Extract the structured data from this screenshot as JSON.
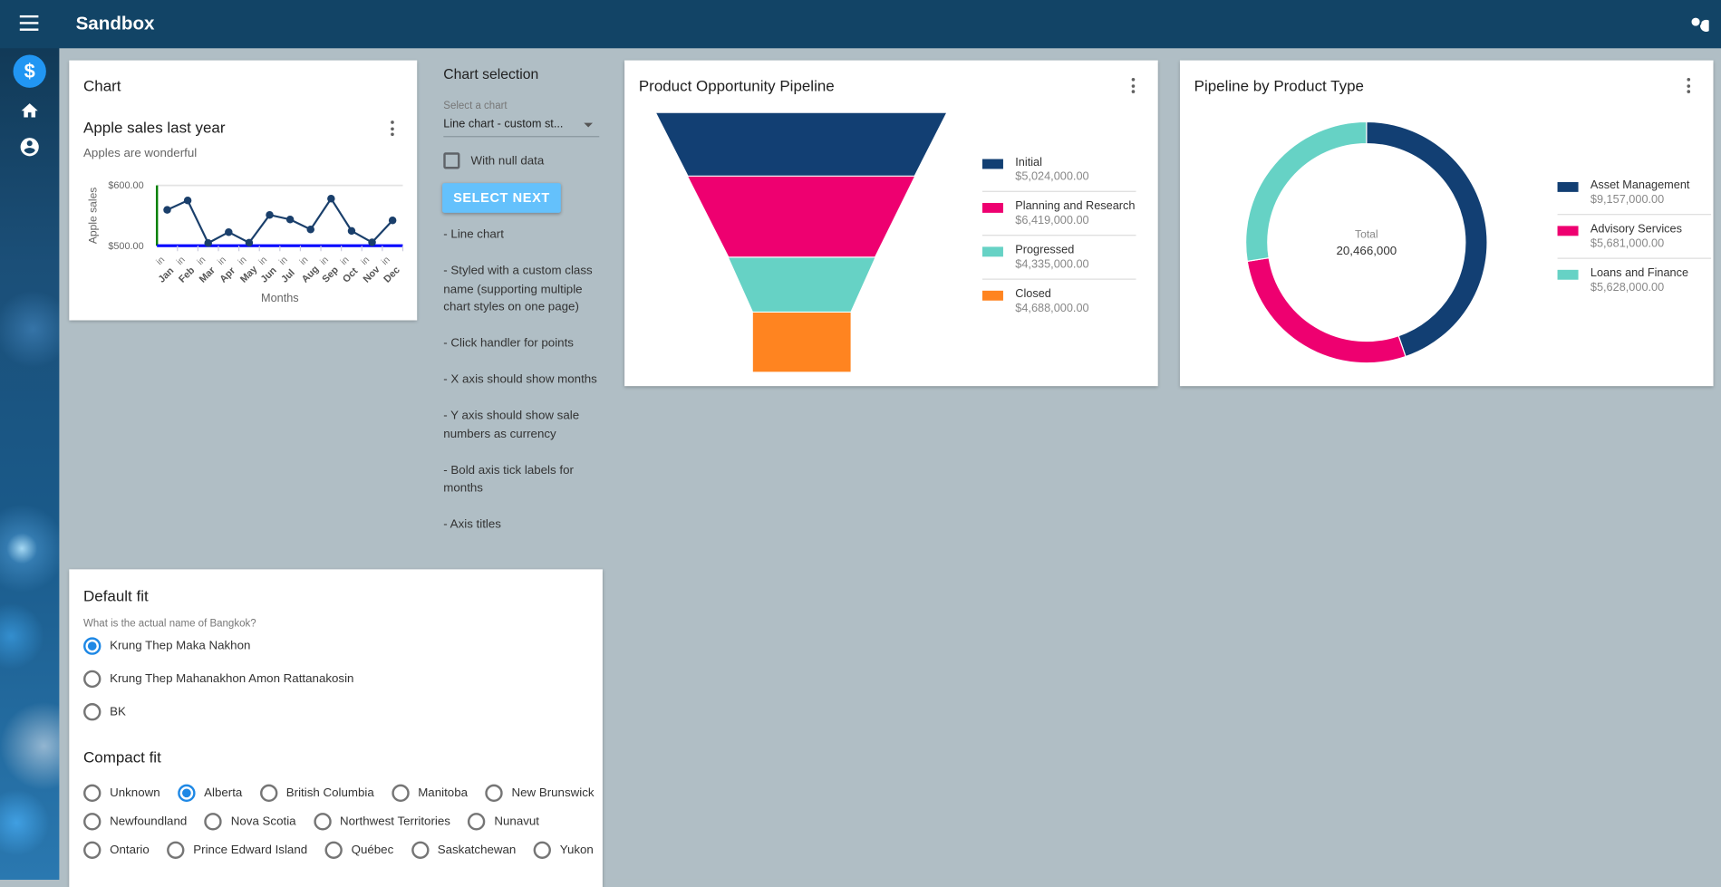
{
  "header": {
    "title": "Sandbox",
    "menu_icon": "menu-icon",
    "search_icon": "search-icon"
  },
  "sidebar": {
    "items": [
      {
        "icon": "dollar-icon",
        "active": true
      },
      {
        "icon": "home-icon"
      },
      {
        "icon": "account-circle-icon"
      }
    ]
  },
  "chart_card": {
    "title": "Chart",
    "chart_title": "Apple sales last year",
    "subtitle": "Apples are wonderful"
  },
  "chart_data": {
    "type": "line",
    "categories": [
      "Jan",
      "Feb",
      "Mar",
      "Apr",
      "May",
      "Jun",
      "Jul",
      "Aug",
      "Sep",
      "Oct",
      "Nov",
      "Dec"
    ],
    "tick_prefix": "in",
    "values": [
      559.5,
      575,
      504.5,
      522.5,
      505,
      551,
      543.5,
      527,
      578,
      524.5,
      505.5,
      542
    ],
    "ylim": [
      500,
      600
    ],
    "yticks": [
      "$500.00",
      "$600.00"
    ],
    "xlabel": "Months",
    "ylabel": "Apple sales",
    "colors": {
      "line": "#1a3f6b",
      "xaxis": "#0000ff",
      "yaxis": "#008000"
    }
  },
  "selection": {
    "title": "Chart selection",
    "select_label": "Select a chart",
    "select_value": "Line chart - custom st...",
    "checkbox_label": "With null data",
    "checkbox_checked": false,
    "button_label": "SELECT NEXT",
    "notes": [
      "- Line chart",
      "- Styled with a custom class name (supporting multiple chart styles on one page)",
      "- Click handler for points",
      "- X axis should show months",
      "- Y axis should show sale numbers as currency",
      "- Bold axis tick labels for months",
      "- Axis titles"
    ]
  },
  "funnel": {
    "title": "Product Opportunity Pipeline",
    "stages": [
      {
        "name": "Initial",
        "value": "$5,024,000.00",
        "color": "#123f73"
      },
      {
        "name": "Planning and Research",
        "value": "$6,419,000.00",
        "color": "#ee0070"
      },
      {
        "name": "Progressed",
        "value": "$4,335,000.00",
        "color": "#66d2c5"
      },
      {
        "name": "Closed",
        "value": "$4,688,000.00",
        "color": "#ff8420"
      }
    ]
  },
  "donut": {
    "title": "Pipeline by Product Type",
    "total_label": "Total",
    "total_value": "20,466,000",
    "segments": [
      {
        "name": "Asset Management",
        "value": 9157000,
        "value_label": "$9,157,000.00",
        "color": "#123f73"
      },
      {
        "name": "Advisory Services",
        "value": 5681000,
        "value_label": "$5,681,000.00",
        "color": "#ee0070"
      },
      {
        "name": "Loans and Finance",
        "value": 5628000,
        "value_label": "$5,628,000.00",
        "color": "#66d2c5"
      }
    ]
  },
  "radios": {
    "default_title": "Default fit",
    "question": "What is the actual name of Bangkok?",
    "default_options": [
      "Krung Thep Maka Nakhon",
      "Krung Thep Mahanakhon Amon Rattanakosin",
      "BK"
    ],
    "default_selected": 0,
    "compact_title": "Compact fit",
    "compact_rows": [
      [
        "Unknown",
        "Alberta",
        "British Columbia",
        "Manitoba",
        "New Brunswick"
      ],
      [
        "Newfoundland",
        "Nova Scotia",
        "Northwest Territories",
        "Nunavut"
      ],
      [
        "Ontario",
        "Prince Edward Island",
        "Québec",
        "Saskatchewan",
        "Yukon"
      ]
    ],
    "compact_selected": "Alberta"
  }
}
